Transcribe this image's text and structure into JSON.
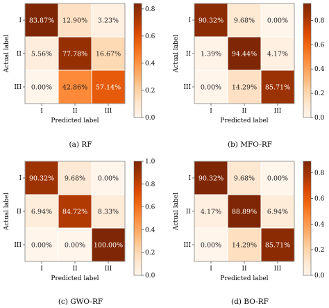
{
  "chart_data": [
    {
      "type": "heatmap",
      "caption": "(a) RF",
      "xlabel": "Predicted label",
      "ylabel": "Actual label",
      "x_ticks": [
        "I",
        "II",
        "III"
      ],
      "y_ticks": [
        "I",
        "II",
        "III"
      ],
      "values": [
        [
          0.8387,
          0.129,
          0.0323
        ],
        [
          0.0556,
          0.7778,
          0.1667
        ],
        [
          0.0,
          0.4286,
          0.5714
        ]
      ],
      "labels": [
        [
          "83.87%",
          "12.90%",
          "3.23%"
        ],
        [
          "5.56%",
          "77.78%",
          "16.67%"
        ],
        [
          "0.00%",
          "42.86%",
          "57.14%"
        ]
      ],
      "colorbar_ticks": [
        0.0,
        0.2,
        0.4,
        0.6,
        0.8
      ],
      "colorbar_tick_labels": [
        "0.0",
        "0.2",
        "0.4",
        "0.6",
        "0.8"
      ],
      "vmin": 0.0,
      "vmax": 0.84
    },
    {
      "type": "heatmap",
      "caption": "(b) MFO-RF",
      "xlabel": "Predicted label",
      "ylabel": "Actual label",
      "x_ticks": [
        "I",
        "II",
        "III"
      ],
      "y_ticks": [
        "I",
        "II",
        "III"
      ],
      "values": [
        [
          0.9032,
          0.0968,
          0.0
        ],
        [
          0.0139,
          0.9444,
          0.0417
        ],
        [
          0.0,
          0.1429,
          0.8571
        ]
      ],
      "labels": [
        [
          "90.32%",
          "9.68%",
          "0.00%"
        ],
        [
          "1.39%",
          "94.44%",
          "4.17%"
        ],
        [
          "0.00%",
          "14.29%",
          "85.71%"
        ]
      ],
      "colorbar_ticks": [
        0.0,
        0.2,
        0.4,
        0.6,
        0.8
      ],
      "colorbar_tick_labels": [
        "0.0",
        "0.2",
        "0.4",
        "0.6",
        "0.8"
      ],
      "vmin": 0.0,
      "vmax": 0.94
    },
    {
      "type": "heatmap",
      "caption": "(c) GWO-RF",
      "xlabel": "Predicted label",
      "ylabel": "Actual label",
      "x_ticks": [
        "I",
        "II",
        "III"
      ],
      "y_ticks": [
        "I",
        "II",
        "III"
      ],
      "values": [
        [
          0.9032,
          0.0968,
          0.0
        ],
        [
          0.0694,
          0.8472,
          0.0833
        ],
        [
          0.0,
          0.0,
          1.0
        ]
      ],
      "labels": [
        [
          "90.32%",
          "9.68%",
          "0.00%"
        ],
        [
          "6.94%",
          "84.72%",
          "8.33%"
        ],
        [
          "0.00%",
          "0.00%",
          "100.00%"
        ]
      ],
      "colorbar_ticks": [
        0.0,
        0.2,
        0.4,
        0.6,
        0.8,
        1.0
      ],
      "colorbar_tick_labels": [
        "0.0",
        "0.2",
        "0.4",
        "0.6",
        "0.8",
        "1.0"
      ],
      "vmin": 0.0,
      "vmax": 1.0
    },
    {
      "type": "heatmap",
      "caption": "(d) BO-RF",
      "xlabel": "Predicted label",
      "ylabel": "Actual label",
      "x_ticks": [
        "I",
        "II",
        "III"
      ],
      "y_ticks": [
        "I",
        "II",
        "III"
      ],
      "values": [
        [
          0.9032,
          0.0968,
          0.0
        ],
        [
          0.0417,
          0.8889,
          0.0694
        ],
        [
          0.0,
          0.1429,
          0.8571
        ]
      ],
      "labels": [
        [
          "90.32%",
          "9.68%",
          "0.00%"
        ],
        [
          "4.17%",
          "88.89%",
          "6.94%"
        ],
        [
          "0.00%",
          "14.29%",
          "85.71%"
        ]
      ],
      "colorbar_ticks": [
        0.0,
        0.2,
        0.4,
        0.6,
        0.8
      ],
      "colorbar_tick_labels": [
        "0.0",
        "0.2",
        "0.4",
        "0.6",
        "0.8"
      ],
      "vmin": 0.0,
      "vmax": 0.89
    }
  ]
}
